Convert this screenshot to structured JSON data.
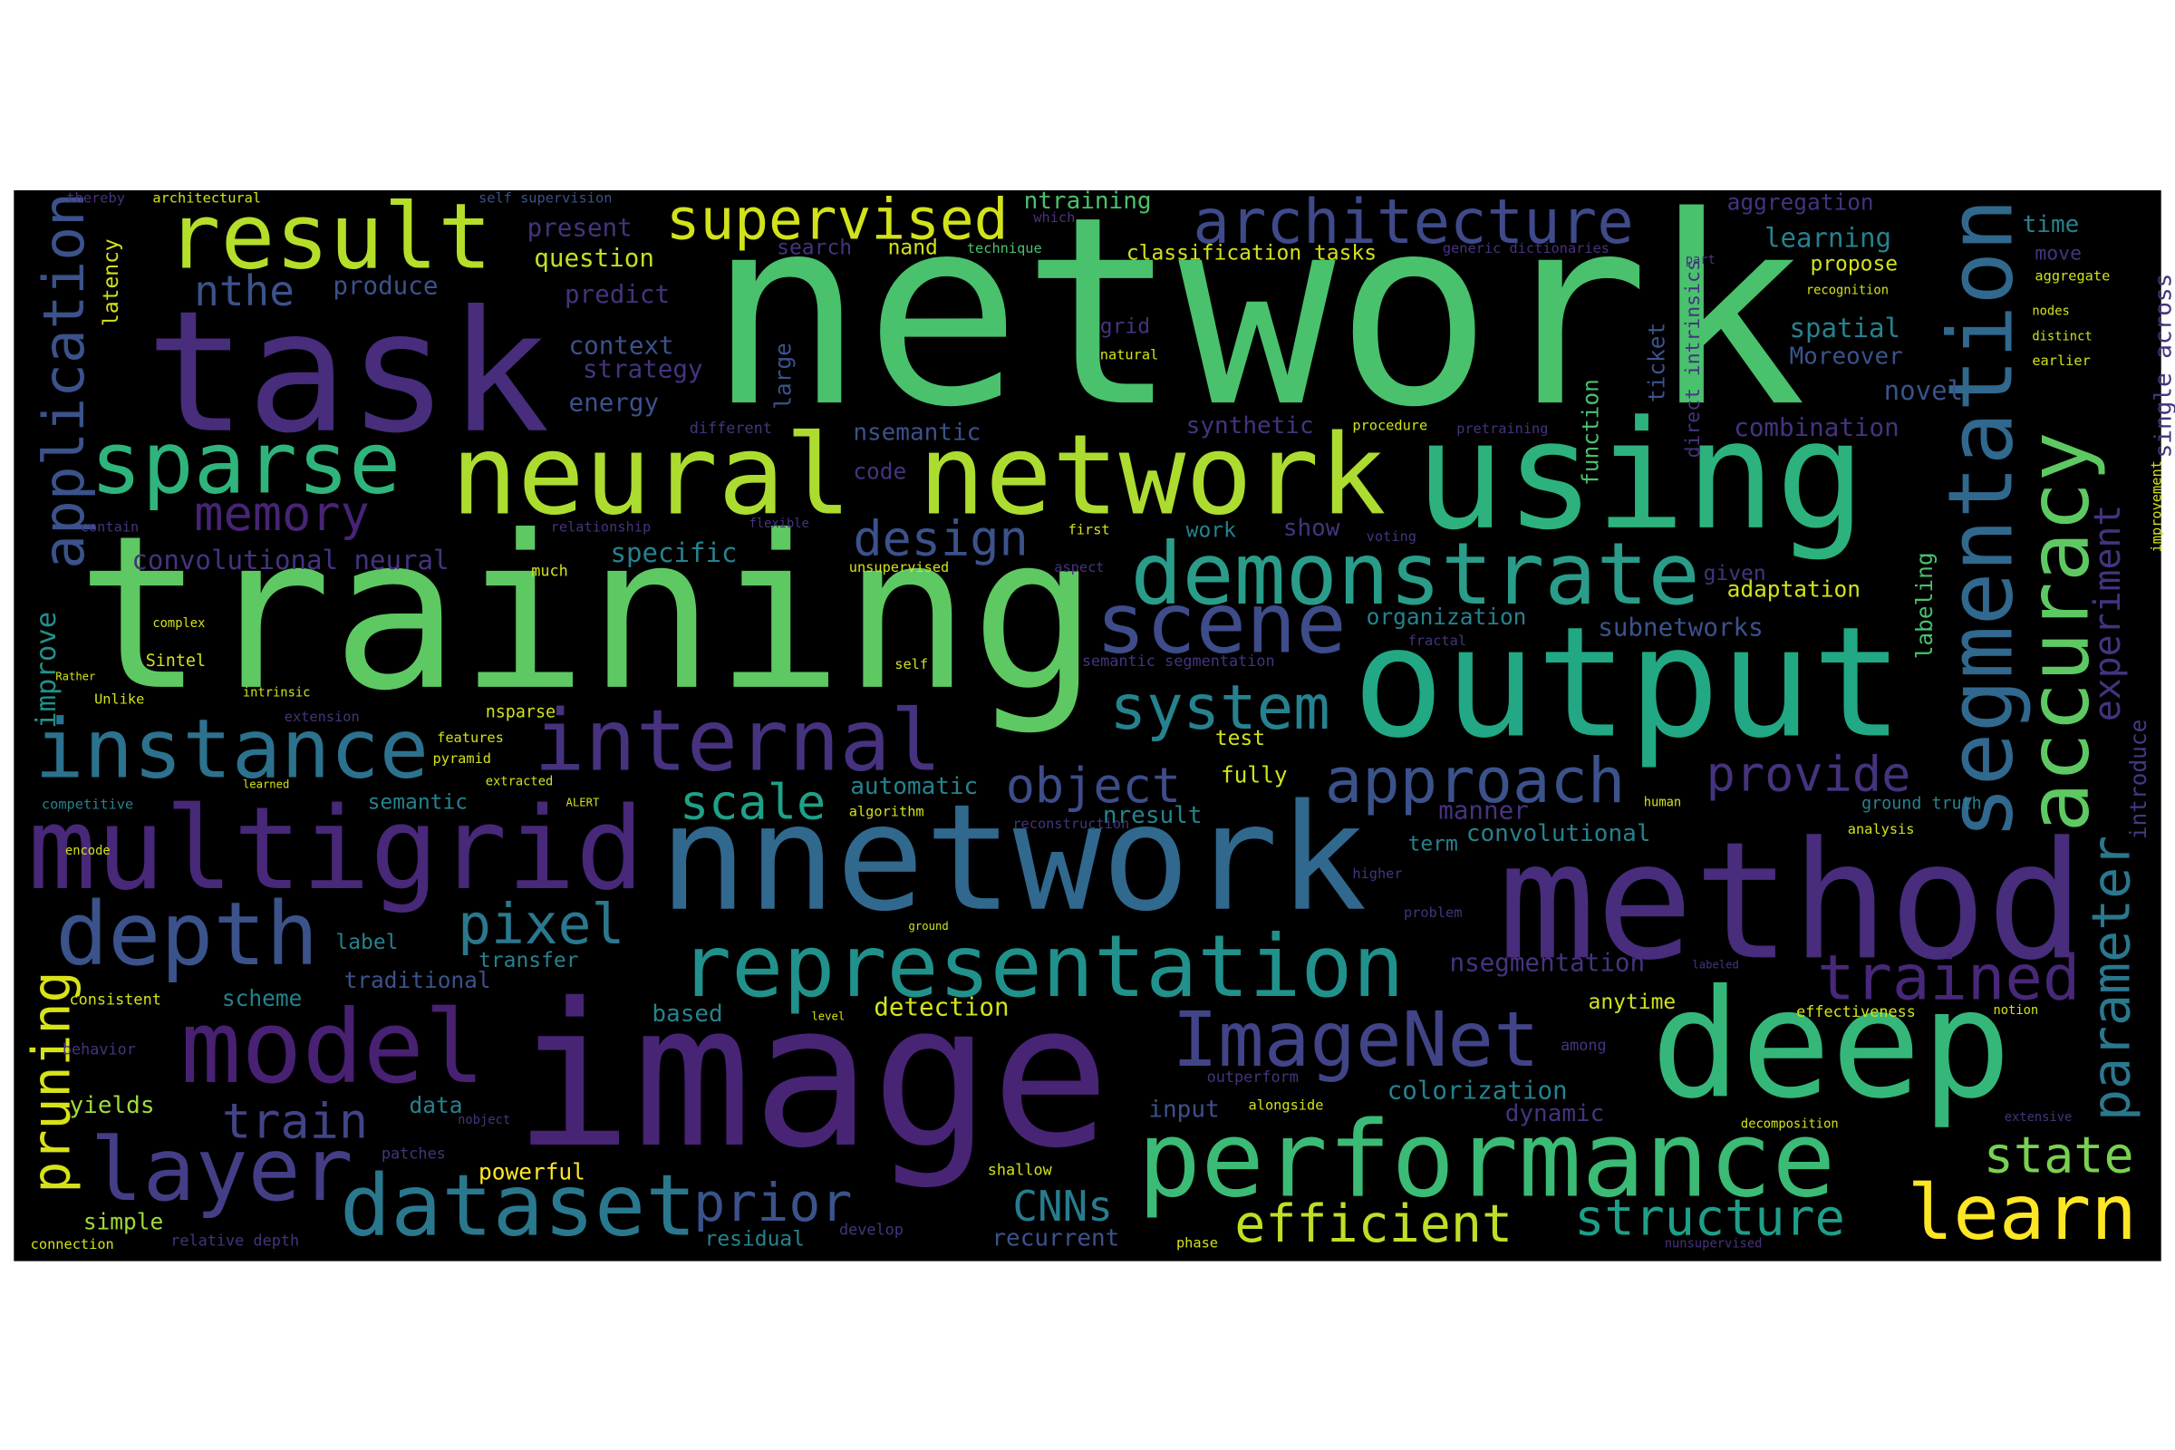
{
  "words": [
    {
      "text": "network",
      "color": "#4ac16d"
    },
    {
      "text": "training",
      "color": "#5ec962"
    },
    {
      "text": "image",
      "color": "#482475"
    },
    {
      "text": "nnetwork",
      "color": "#31688e"
    },
    {
      "text": "task",
      "color": "#472d7b"
    },
    {
      "text": "output",
      "color": "#22a884"
    },
    {
      "text": "method",
      "color": "#472d7b"
    },
    {
      "text": "deep",
      "color": "#35b779"
    },
    {
      "text": "using",
      "color": "#2db27d"
    },
    {
      "text": "neural network",
      "color": "#addc30"
    },
    {
      "text": "multigrid",
      "color": "#482878"
    },
    {
      "text": "representation",
      "color": "#21918c"
    },
    {
      "text": "performance",
      "color": "#3bbb75"
    },
    {
      "text": "demonstrate",
      "color": "#2a9d8a"
    },
    {
      "text": "sparse",
      "color": "#2fb47c"
    },
    {
      "text": "result",
      "color": "#b5de2b"
    },
    {
      "text": "architecture",
      "color": "#3e4a89"
    },
    {
      "text": "supervised",
      "color": "#d2e21b"
    },
    {
      "text": "instance",
      "color": "#2c728e"
    },
    {
      "text": "internal",
      "color": "#46327e"
    },
    {
      "text": "depth",
      "color": "#3b528b"
    },
    {
      "text": "model",
      "color": "#482173"
    },
    {
      "text": "layer",
      "color": "#433e85"
    },
    {
      "text": "dataset",
      "color": "#2a788e"
    },
    {
      "text": "scene",
      "color": "#3e4c8a"
    },
    {
      "text": "system",
      "color": "#26828e"
    },
    {
      "text": "approach",
      "color": "#3b528b"
    },
    {
      "text": "accuracy",
      "color": "#5ec962"
    },
    {
      "text": "segmentation",
      "color": "#31688e"
    },
    {
      "text": "parameter",
      "color": "#2a788e"
    },
    {
      "text": "experiment",
      "color": "#46337e"
    },
    {
      "text": "introduce",
      "color": "#443a83"
    },
    {
      "text": "application",
      "color": "#3b528b"
    },
    {
      "text": "improve",
      "color": "#21918c"
    },
    {
      "text": "pruning",
      "color": "#d8e219"
    },
    {
      "text": "efficient",
      "color": "#bddf26"
    },
    {
      "text": "learn",
      "color": "#fde725"
    },
    {
      "text": "state",
      "color": "#7ad151"
    },
    {
      "text": "trained",
      "color": "#482878"
    },
    {
      "text": "structure",
      "color": "#1f9e89"
    },
    {
      "text": "ImageNet",
      "color": "#414487"
    },
    {
      "text": "prior",
      "color": "#3b528b"
    },
    {
      "text": "CNNs",
      "color": "#287c8e"
    },
    {
      "text": "train",
      "color": "#414487"
    },
    {
      "text": "pixel",
      "color": "#2a788e"
    },
    {
      "text": "scale",
      "color": "#1fa187"
    },
    {
      "text": "object",
      "color": "#3e4c8a"
    },
    {
      "text": "provide",
      "color": "#46337e"
    },
    {
      "text": "memory",
      "color": "#482475"
    },
    {
      "text": "design",
      "color": "#3b528b"
    },
    {
      "text": "nthe",
      "color": "#3b528b"
    },
    {
      "text": "produce",
      "color": "#3b528b"
    },
    {
      "text": "present",
      "color": "#46337e"
    },
    {
      "text": "question",
      "color": "#c2df23"
    },
    {
      "text": "predict",
      "color": "#46337e"
    },
    {
      "text": "context",
      "color": "#3b528b"
    },
    {
      "text": "strategy",
      "color": "#46337e"
    },
    {
      "text": "energy",
      "color": "#3b528b"
    },
    {
      "text": "search",
      "color": "#46337e"
    },
    {
      "text": "nand",
      "color": "#d2e21b"
    },
    {
      "text": "ntraining",
      "color": "#4ac16d"
    },
    {
      "text": "classification tasks",
      "color": "#d2e21b"
    },
    {
      "text": "learning",
      "color": "#26828e"
    },
    {
      "text": "aggregation",
      "color": "#46337e"
    },
    {
      "text": "time",
      "color": "#26828e"
    },
    {
      "text": "move",
      "color": "#46337e"
    },
    {
      "text": "propose",
      "color": "#d2e21b"
    },
    {
      "text": "spatial",
      "color": "#26828e"
    },
    {
      "text": "Moreover",
      "color": "#3b528b"
    },
    {
      "text": "novel",
      "color": "#3b528b"
    },
    {
      "text": "combination",
      "color": "#46337e"
    },
    {
      "text": "grid",
      "color": "#46337e"
    },
    {
      "text": "synthetic",
      "color": "#46337e"
    },
    {
      "text": "nsemantic",
      "color": "#3b528b"
    },
    {
      "text": "code",
      "color": "#46337e"
    },
    {
      "text": "large",
      "color": "#3b528b"
    },
    {
      "text": "work",
      "color": "#26828e"
    },
    {
      "text": "show",
      "color": "#46337e"
    },
    {
      "text": "specific",
      "color": "#26828e"
    },
    {
      "text": "convolutional neural",
      "color": "#46337e"
    },
    {
      "text": "organization",
      "color": "#26828e"
    },
    {
      "text": "subnetworks",
      "color": "#3b528b"
    },
    {
      "text": "adaptation",
      "color": "#d2e21b"
    },
    {
      "text": "given",
      "color": "#46337e"
    },
    {
      "text": "labeling",
      "color": "#4ac16d"
    },
    {
      "text": "function",
      "color": "#4ac16d"
    },
    {
      "text": "ticket",
      "color": "#3b528b"
    },
    {
      "text": "direct intrinsics",
      "color": "#46337e"
    },
    {
      "text": "automatic",
      "color": "#26828e"
    },
    {
      "text": "nresult",
      "color": "#26828e"
    },
    {
      "text": "semantic",
      "color": "#26828e"
    },
    {
      "text": "manner",
      "color": "#46337e"
    },
    {
      "text": "term",
      "color": "#26828e"
    },
    {
      "text": "convolutional",
      "color": "#26828e"
    },
    {
      "text": "test",
      "color": "#d2e21b"
    },
    {
      "text": "fully",
      "color": "#d2e21b"
    },
    {
      "text": "label",
      "color": "#26828e"
    },
    {
      "text": "transfer",
      "color": "#26828e"
    },
    {
      "text": "traditional",
      "color": "#3b528b"
    },
    {
      "text": "scheme",
      "color": "#26828e"
    },
    {
      "text": "based",
      "color": "#26828e"
    },
    {
      "text": "detection",
      "color": "#d2e21b"
    },
    {
      "text": "nsegmentation",
      "color": "#46337e"
    },
    {
      "text": "anytime",
      "color": "#d2e21b"
    },
    {
      "text": "colorization",
      "color": "#26828e"
    },
    {
      "text": "dynamic",
      "color": "#46337e"
    },
    {
      "text": "data",
      "color": "#26828e"
    },
    {
      "text": "input",
      "color": "#3b528b"
    },
    {
      "text": "yields",
      "color": "#a0da39"
    },
    {
      "text": "powerful",
      "color": "#fde725"
    },
    {
      "text": "simple",
      "color": "#a0da39"
    },
    {
      "text": "residual",
      "color": "#26828e"
    },
    {
      "text": "recurrent",
      "color": "#3b528b"
    },
    {
      "text": "ground truth",
      "color": "#26828e"
    },
    {
      "text": "effectiveness",
      "color": "#d2e21b"
    },
    {
      "text": "analysis",
      "color": "#d2e21b"
    },
    {
      "text": "outperform",
      "color": "#46337e"
    },
    {
      "text": "shallow",
      "color": "#d2e21b"
    },
    {
      "text": "develop",
      "color": "#46337e"
    },
    {
      "text": "phase",
      "color": "#d2e21b"
    },
    {
      "text": "latency",
      "color": "#d2e21b"
    },
    {
      "text": "thereby",
      "color": "#46337e"
    },
    {
      "text": "architectural",
      "color": "#d2e21b"
    },
    {
      "text": "self supervision",
      "color": "#3b528b"
    },
    {
      "text": "technique",
      "color": "#4ac16d"
    },
    {
      "text": "which",
      "color": "#46337e"
    },
    {
      "text": "generic dictionaries",
      "color": "#46337e"
    },
    {
      "text": "part",
      "color": "#46337e"
    },
    {
      "text": "recognition",
      "color": "#d2e21b"
    },
    {
      "text": "aggregate",
      "color": "#d2e21b"
    },
    {
      "text": "nodes",
      "color": "#d2e21b"
    },
    {
      "text": "distinct",
      "color": "#d2e21b"
    },
    {
      "text": "earlier",
      "color": "#d2e21b"
    },
    {
      "text": "natural",
      "color": "#d2e21b"
    },
    {
      "text": "different",
      "color": "#46337e"
    },
    {
      "text": "procedure",
      "color": "#d2e21b"
    },
    {
      "text": "pretraining",
      "color": "#46337e"
    },
    {
      "text": "first",
      "color": "#d2e21b"
    },
    {
      "text": "voting",
      "color": "#46337e"
    },
    {
      "text": "unsupervised",
      "color": "#d2e21b"
    },
    {
      "text": "aspect",
      "color": "#46337e"
    },
    {
      "text": "much",
      "color": "#d2e21b"
    },
    {
      "text": "relationship",
      "color": "#46337e"
    },
    {
      "text": "flexible",
      "color": "#46337e"
    },
    {
      "text": "contain",
      "color": "#46337e"
    },
    {
      "text": "fractal",
      "color": "#46337e"
    },
    {
      "text": "semantic segmentation",
      "color": "#46337e"
    },
    {
      "text": "self",
      "color": "#d2e21b"
    },
    {
      "text": "Sintel",
      "color": "#d2e21b"
    },
    {
      "text": "complex",
      "color": "#d2e21b"
    },
    {
      "text": "Rather",
      "color": "#d2e21b"
    },
    {
      "text": "intrinsic",
      "color": "#d2e21b"
    },
    {
      "text": "Unlike",
      "color": "#d2e21b"
    },
    {
      "text": "extension",
      "color": "#46337e"
    },
    {
      "text": "features",
      "color": "#d2e21b"
    },
    {
      "text": "pyramid",
      "color": "#d2e21b"
    },
    {
      "text": "learned",
      "color": "#d2e21b"
    },
    {
      "text": "extracted",
      "color": "#d2e21b"
    },
    {
      "text": "competitive",
      "color": "#26828e"
    },
    {
      "text": "ALERT",
      "color": "#d2e21b"
    },
    {
      "text": "algorithm",
      "color": "#d2e21b"
    },
    {
      "text": "reconstruction",
      "color": "#46337e"
    },
    {
      "text": "human",
      "color": "#d2e21b"
    },
    {
      "text": "encode",
      "color": "#d2e21b"
    },
    {
      "text": "nsparse",
      "color": "#d2e21b"
    },
    {
      "text": "higher",
      "color": "#46337e"
    },
    {
      "text": "problem",
      "color": "#46337e"
    },
    {
      "text": "ground",
      "color": "#d2e21b"
    },
    {
      "text": "consistent",
      "color": "#d2e21b"
    },
    {
      "text": "level",
      "color": "#d2e21b"
    },
    {
      "text": "labeled",
      "color": "#46337e"
    },
    {
      "text": "among",
      "color": "#46337e"
    },
    {
      "text": "notion",
      "color": "#d2e21b"
    },
    {
      "text": "behavior",
      "color": "#46337e"
    },
    {
      "text": "alongside",
      "color": "#d2e21b"
    },
    {
      "text": "nobject",
      "color": "#46337e"
    },
    {
      "text": "patches",
      "color": "#46337e"
    },
    {
      "text": "decomposition",
      "color": "#d2e21b"
    },
    {
      "text": "extensive",
      "color": "#46337e"
    },
    {
      "text": "connection",
      "color": "#d2e21b"
    },
    {
      "text": "relative depth",
      "color": "#46337e"
    },
    {
      "text": "nunsupervised",
      "color": "#46337e"
    },
    {
      "text": "single across",
      "color": "#46337e"
    },
    {
      "text": "improvement",
      "color": "#d2e21b"
    }
  ]
}
